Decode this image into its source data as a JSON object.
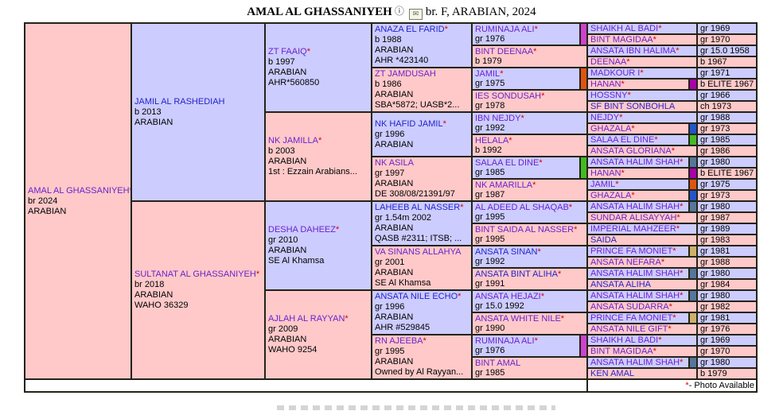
{
  "header": {
    "title": "AMAL AL GHASSANIYEH",
    "info_icon": "ⓘ",
    "mail_icon": "✉",
    "details": "br. F, ARABIAN, 2024"
  },
  "legend": {
    "star": "*",
    "label": " - Photo Available"
  },
  "colors": {
    "male_bg": "#ccccff",
    "female_bg": "#ffc9c9",
    "border": "#23231a",
    "link_blue": "#2323cc",
    "link_purple": "#6b22cc",
    "star_red": "#dd0000",
    "swatch_magenta": "#cc44cc",
    "swatch_orange": "#dd5511",
    "swatch_green": "#44bb22",
    "swatch_blue": "#2255cc",
    "swatch_slate": "#557799",
    "swatch_purple": "#aa00aa",
    "swatch_tan": "#ccb266"
  },
  "pedigree": {
    "gen1": [
      {
        "name": "AMAL AL GHASSANIYEH",
        "star": "*",
        "link": "purple",
        "sex": "f",
        "lines": [
          "br 2024",
          "ARABIAN"
        ]
      }
    ],
    "gen2": [
      {
        "name": "JAMIL AL RASHEDIAH",
        "star": "",
        "link": "blue",
        "sex": "m",
        "lines": [
          "b 2013",
          "ARABIAN"
        ]
      },
      {
        "name": "SULTANAT AL GHASSANIYEH",
        "star": "*",
        "link": "purple",
        "sex": "f",
        "lines": [
          "br 2018",
          "ARABIAN",
          "WAHO 36329"
        ]
      }
    ],
    "gen3": [
      {
        "name": "ZT FAAIQ",
        "star": "*",
        "link": "purple",
        "sex": "m",
        "lines": [
          "b 1997",
          "ARABIAN",
          "AHR*560850"
        ]
      },
      {
        "name": "NK JAMILLA",
        "star": "*",
        "link": "purple",
        "sex": "f",
        "lines": [
          "b 2003",
          "ARABIAN",
          "1st : Ezzain Arabians..."
        ]
      },
      {
        "name": "DESHA DAHEEZ",
        "star": "*",
        "link": "purple",
        "sex": "m",
        "lines": [
          "gr 2010",
          "ARABIAN",
          "SE Al Khamsa"
        ]
      },
      {
        "name": "AJLAH AL RAYYAN",
        "star": "*",
        "link": "purple",
        "sex": "f",
        "lines": [
          "gr 2009",
          "ARABIAN",
          "WAHO 9254"
        ]
      }
    ],
    "gen4": [
      {
        "name": "ANAZA EL FARID",
        "star": "*",
        "link": "blue",
        "sex": "m",
        "lines": [
          "b 1988",
          "ARABIAN",
          "AHR *423140"
        ]
      },
      {
        "name": "ZT JAMDUSAH",
        "star": "",
        "link": "purple",
        "sex": "f",
        "lines": [
          "b 1986",
          "ARABIAN",
          "SBA*5872; UASB*2..."
        ]
      },
      {
        "name": "NK HAFID JAMIL",
        "star": "*",
        "link": "blue",
        "sex": "m",
        "lines": [
          "gr 1996",
          "ARABIAN"
        ]
      },
      {
        "name": "NK ASILA",
        "star": "",
        "link": "purple",
        "sex": "f",
        "lines": [
          "gr 1997",
          "ARABIAN",
          "DE 308/08/21391/97"
        ]
      },
      {
        "name": "LAHEEB AL NASSER",
        "star": "*",
        "link": "blue",
        "sex": "m",
        "lines": [
          "gr 1.54m 2002",
          "ARABIAN",
          "QASB #2311; ITSB; ..."
        ]
      },
      {
        "name": "VA SINANS ALLAHYA",
        "star": "",
        "link": "purple",
        "sex": "f",
        "lines": [
          "gr 2001",
          "ARABIAN",
          "SE Al Khamsa"
        ]
      },
      {
        "name": "ANSATA NILE ECHO",
        "star": "*",
        "link": "blue",
        "sex": "m",
        "lines": [
          "gr 1996",
          "ARABIAN",
          "AHR #529845"
        ]
      },
      {
        "name": "RN AJEEBA",
        "star": "*",
        "link": "purple",
        "sex": "f",
        "lines": [
          "gr 1995",
          "ARABIAN",
          "Owned by Al Rayyan..."
        ]
      }
    ],
    "gen5": [
      {
        "name": "RUMINAJA ALI",
        "star": "*",
        "link": "purple",
        "sex": "m",
        "detail": "gr 1976",
        "swatch": "#cc44cc"
      },
      {
        "name": "BINT DEENAA",
        "star": "*",
        "link": "purple",
        "sex": "f",
        "detail": "b 1979"
      },
      {
        "name": "JAMIL",
        "star": "*",
        "link": "purple",
        "sex": "m",
        "detail": "gr 1975",
        "swatch": "#dd5511"
      },
      {
        "name": "IES SONDUSAH",
        "star": "*",
        "link": "purple",
        "sex": "f",
        "detail": "gr 1978"
      },
      {
        "name": "IBN NEJDY",
        "star": "*",
        "link": "purple",
        "sex": "m",
        "detail": "gr 1992"
      },
      {
        "name": "HELALA",
        "star": "*",
        "link": "purple",
        "sex": "f",
        "detail": "b 1992"
      },
      {
        "name": "SALAA EL DINE",
        "star": "*",
        "link": "purple",
        "sex": "m",
        "detail": "gr 1985",
        "swatch": "#44bb22"
      },
      {
        "name": "NK AMARILLA",
        "star": "*",
        "link": "purple",
        "sex": "f",
        "detail": "gr 1987"
      },
      {
        "name": "AL ADEED AL SHAQAB",
        "star": "*",
        "link": "purple",
        "sex": "m",
        "detail": "gr 1995"
      },
      {
        "name": "BINT SAIDA AL NASSER",
        "star": "*",
        "link": "purple",
        "sex": "f",
        "detail": "gr 1995"
      },
      {
        "name": "ANSATA SINAN",
        "star": "*",
        "link": "blue",
        "sex": "m",
        "detail": "gr 1992"
      },
      {
        "name": "ANSATA BINT ALIHA",
        "star": "*",
        "link": "blue",
        "sex": "f",
        "detail": "gr 1991"
      },
      {
        "name": "ANSATA HEJAZI",
        "star": "*",
        "link": "purple",
        "sex": "m",
        "detail": "gr 15.0 1992"
      },
      {
        "name": "ANSATA WHITE NILE",
        "star": "*",
        "link": "purple",
        "sex": "f",
        "detail": "gr 1990"
      },
      {
        "name": "RUMINAJA ALI",
        "star": "*",
        "link": "purple",
        "sex": "m",
        "detail": "gr 1976",
        "swatch": "#cc44cc"
      },
      {
        "name": "BINT AMAL",
        "star": "",
        "link": "purple",
        "sex": "f",
        "detail": "gr 1985"
      }
    ],
    "gen6": [
      {
        "name": "SHAIKH AL BADI",
        "star": "*",
        "link": "purple",
        "sex": "m",
        "year": "gr 1969"
      },
      {
        "name": "BINT MAGIDAA",
        "star": "*",
        "link": "purple",
        "sex": "f",
        "year": "gr 1970"
      },
      {
        "name": "ANSATA IBN HALIMA",
        "star": "*",
        "link": "purple",
        "sex": "m",
        "year": "gr 15.0 1958"
      },
      {
        "name": "DEENAA",
        "star": "*",
        "link": "purple",
        "sex": "f",
        "year": "b 1967"
      },
      {
        "name": "MADKOUR I",
        "star": "*",
        "link": "purple",
        "sex": "m",
        "year": "gr 1971"
      },
      {
        "name": "HANAN",
        "star": "*",
        "link": "purple",
        "sex": "f",
        "year": "b ELITE 1967",
        "swatch": "#aa00aa"
      },
      {
        "name": "HOSSNY",
        "star": "*",
        "link": "purple",
        "sex": "m",
        "year": "gr 1966"
      },
      {
        "name": "SF BINT SONBOHLA",
        "star": "",
        "link": "blue",
        "sex": "f",
        "year": "ch 1973"
      },
      {
        "name": "NEJDY",
        "star": "*",
        "link": "purple",
        "sex": "m",
        "year": "gr 1988"
      },
      {
        "name": "GHAZALA",
        "star": "*",
        "link": "purple",
        "sex": "f",
        "year": "gr 1973",
        "swatch": "#2255cc"
      },
      {
        "name": "SALAA EL DINE",
        "star": "*",
        "link": "purple",
        "sex": "m",
        "year": "gr 1985",
        "swatch": "#44bb22"
      },
      {
        "name": "ANSATA GLORIANA",
        "star": "*",
        "link": "purple",
        "sex": "f",
        "year": "gr 1986"
      },
      {
        "name": "ANSATA HALIM SHAH",
        "star": "*",
        "link": "purple",
        "sex": "m",
        "year": "gr 1980",
        "swatch": "#557799"
      },
      {
        "name": "HANAN",
        "star": "*",
        "link": "purple",
        "sex": "f",
        "year": "b ELITE 1967",
        "swatch": "#aa00aa"
      },
      {
        "name": "JAMIL",
        "star": "*",
        "link": "purple",
        "sex": "m",
        "year": "gr 1975",
        "swatch": "#dd5511"
      },
      {
        "name": "GHAZALA",
        "star": "*",
        "link": "purple",
        "sex": "f",
        "year": "gr 1973",
        "swatch": "#2255cc"
      },
      {
        "name": "ANSATA HALIM SHAH",
        "star": "*",
        "link": "purple",
        "sex": "m",
        "year": "gr 1980",
        "swatch": "#557799"
      },
      {
        "name": "SUNDAR ALISAYYAH",
        "star": "*",
        "link": "purple",
        "sex": "f",
        "year": "gr 1987"
      },
      {
        "name": "IMPERIAL MAHZEER",
        "star": "*",
        "link": "purple",
        "sex": "m",
        "year": "gr 1989"
      },
      {
        "name": "SAIDA",
        "star": "",
        "link": "blue",
        "sex": "f",
        "year": "gr 1983"
      },
      {
        "name": "PRINCE FA MONIET",
        "star": "*",
        "link": "purple",
        "sex": "m",
        "year": "gr 1981",
        "swatch": "#ccb266"
      },
      {
        "name": "ANSATA NEFARA",
        "star": "*",
        "link": "purple",
        "sex": "f",
        "year": "gr 1988"
      },
      {
        "name": "ANSATA HALIM SHAH",
        "star": "*",
        "link": "purple",
        "sex": "m",
        "year": "gr 1980",
        "swatch": "#557799"
      },
      {
        "name": "ANSATA ALIHA",
        "star": "",
        "link": "blue",
        "sex": "f",
        "year": "gr 1984"
      },
      {
        "name": "ANSATA HALIM SHAH",
        "star": "*",
        "link": "purple",
        "sex": "m",
        "year": "gr 1980",
        "swatch": "#557799"
      },
      {
        "name": "ANSATA SUDARRA",
        "star": "*",
        "link": "purple",
        "sex": "f",
        "year": "gr 1982"
      },
      {
        "name": "PRINCE FA MONIET",
        "star": "*",
        "link": "purple",
        "sex": "m",
        "year": "gr 1981",
        "swatch": "#ccb266"
      },
      {
        "name": "ANSATA NILE GIFT",
        "star": "*",
        "link": "purple",
        "sex": "f",
        "year": "gr 1976"
      },
      {
        "name": "SHAIKH AL BADI",
        "star": "*",
        "link": "purple",
        "sex": "m",
        "year": "gr 1969"
      },
      {
        "name": "BINT MAGIDAA",
        "star": "*",
        "link": "purple",
        "sex": "f",
        "year": "gr 1970"
      },
      {
        "name": "ANSATA HALIM SHAH",
        "star": "*",
        "link": "purple",
        "sex": "m",
        "year": "gr 1980",
        "swatch": "#557799"
      },
      {
        "name": "KEN AMAL",
        "star": "",
        "link": "blue",
        "sex": "f",
        "year": "b 1979"
      }
    ]
  }
}
